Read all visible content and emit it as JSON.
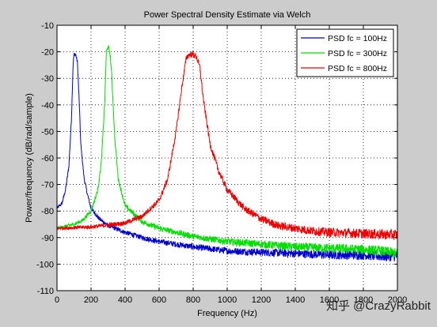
{
  "chart_data": {
    "type": "line",
    "title": "Power Spectral Density Estimate via Welch",
    "xlabel": "Frequency (Hz)",
    "ylabel": "Power/frequency (dB/rad/sample)",
    "xlim": [
      0,
      2000
    ],
    "ylim": [
      -110,
      -10
    ],
    "xticks": [
      0,
      200,
      400,
      600,
      800,
      1000,
      1200,
      1400,
      1600,
      1800,
      2000
    ],
    "yticks": [
      -10,
      -20,
      -30,
      -40,
      -50,
      -60,
      -70,
      -80,
      -90,
      -100,
      -110
    ],
    "grid": true,
    "legend_position": "top-right",
    "series": [
      {
        "name": "PSD fc = 100Hz",
        "color": "#0000cc",
        "x": [
          0,
          30,
          50,
          70,
          85,
          95,
          100,
          110,
          120,
          130,
          140,
          160,
          180,
          200,
          250,
          300,
          400,
          500,
          600,
          800,
          1000,
          1200,
          1400,
          1600,
          1800,
          1900,
          2000
        ],
        "y": [
          -79,
          -77,
          -72,
          -63,
          -45,
          -24,
          -21,
          -21,
          -24,
          -38,
          -55,
          -68,
          -74,
          -79,
          -83,
          -85.5,
          -88,
          -90,
          -91.5,
          -93.5,
          -95,
          -95.5,
          -96,
          -96.5,
          -96.5,
          -97,
          -97
        ]
      },
      {
        "name": "PSD fc = 300Hz",
        "color": "#00dd00",
        "x": [
          0,
          100,
          150,
          200,
          240,
          260,
          280,
          290,
          300,
          310,
          320,
          340,
          360,
          400,
          500,
          600,
          800,
          1000,
          1200,
          1400,
          1600,
          1800,
          1900,
          2000
        ],
        "y": [
          -86.5,
          -85,
          -83.5,
          -80,
          -72,
          -62,
          -40,
          -20,
          -18,
          -20,
          -27,
          -53,
          -68,
          -78,
          -84,
          -86.5,
          -89.5,
          -91.5,
          -92.5,
          -93.5,
          -94,
          -94.5,
          -95,
          -96
        ]
      },
      {
        "name": "PSD fc = 800Hz",
        "color": "#ee0000",
        "x": [
          0,
          200,
          400,
          500,
          600,
          650,
          700,
          730,
          760,
          780,
          800,
          820,
          840,
          860,
          900,
          950,
          1000,
          1100,
          1200,
          1300,
          1400,
          1500,
          1600,
          1800,
          2000
        ],
        "y": [
          -86.5,
          -86,
          -84.5,
          -82,
          -76,
          -68,
          -50,
          -35,
          -22,
          -21,
          -21,
          -22,
          -26,
          -38,
          -55,
          -65,
          -72,
          -79,
          -83,
          -85.5,
          -86.5,
          -87.5,
          -88,
          -88.5,
          -89
        ]
      }
    ],
    "annotations": [
      "知乎 @CrazyRabbit"
    ]
  }
}
